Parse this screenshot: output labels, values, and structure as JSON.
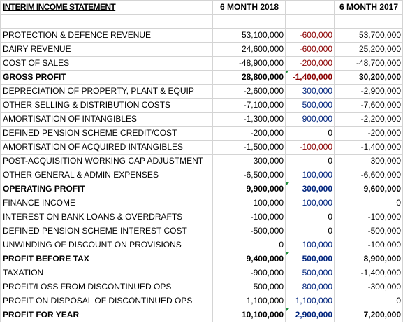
{
  "header": {
    "title": "INTERIM INCOME STATEMENT",
    "col_2018": "6 MONTH 2018",
    "col_2017": "6 MONTH 2017"
  },
  "rows": [
    {
      "label": "PROTECTION & DEFENCE REVENUE",
      "v2018": "53,100,000",
      "diff": "-600,000",
      "v2017": "53,700,000",
      "bold": false,
      "diff_kind": "neg"
    },
    {
      "label": "DAIRY REVENUE",
      "v2018": "24,600,000",
      "diff": "-600,000",
      "v2017": "25,200,000",
      "bold": false,
      "diff_kind": "neg"
    },
    {
      "label": "COST OF SALES",
      "v2018": "-48,900,000",
      "diff": "-200,000",
      "v2017": "-48,700,000",
      "bold": false,
      "diff_kind": "neg"
    },
    {
      "label": "GROSS PROFIT",
      "v2018": "28,800,000",
      "diff": "-1,400,000",
      "v2017": "30,200,000",
      "bold": true,
      "diff_kind": "neg",
      "flag": true
    },
    {
      "label": "DEPRECIATION OF PROPERTY, PLANT & EQUIP",
      "v2018": "-2,600,000",
      "diff": "300,000",
      "v2017": "-2,900,000",
      "bold": false,
      "diff_kind": "pos"
    },
    {
      "label": "OTHER SELLING & DISTRIBUTION COSTS",
      "v2018": "-7,100,000",
      "diff": "500,000",
      "v2017": "-7,600,000",
      "bold": false,
      "diff_kind": "pos"
    },
    {
      "label": "AMORTISATION OF INTANGIBLES",
      "v2018": "-1,300,000",
      "diff": "900,000",
      "v2017": "-2,200,000",
      "bold": false,
      "diff_kind": "pos"
    },
    {
      "label": "DEFINED PENSION SCHEME CREDIT/COST",
      "v2018": "-200,000",
      "diff": "0",
      "v2017": "-200,000",
      "bold": false,
      "diff_kind": "zero"
    },
    {
      "label": "AMORTISATION OF ACQUIRED INTANGIBLES",
      "v2018": "-1,500,000",
      "diff": "-100,000",
      "v2017": "-1,400,000",
      "bold": false,
      "diff_kind": "neg"
    },
    {
      "label": "POST-ACQUISITION WORKING CAP ADJUSTMENT",
      "v2018": "300,000",
      "diff": "0",
      "v2017": "300,000",
      "bold": false,
      "diff_kind": "zero"
    },
    {
      "label": "OTHER GENERAL & ADMIN EXPENSES",
      "v2018": "-6,500,000",
      "diff": "100,000",
      "v2017": "-6,600,000",
      "bold": false,
      "diff_kind": "pos"
    },
    {
      "label": "OPERATING PROFIT",
      "v2018": "9,900,000",
      "diff": "300,000",
      "v2017": "9,600,000",
      "bold": true,
      "diff_kind": "pos",
      "flag": true
    },
    {
      "label": "FINANCE INCOME",
      "v2018": "100,000",
      "diff": "100,000",
      "v2017": "0",
      "bold": false,
      "diff_kind": "pos"
    },
    {
      "label": "INTEREST ON BANK LOANS & OVERDRAFTS",
      "v2018": "-100,000",
      "diff": "0",
      "v2017": "-100,000",
      "bold": false,
      "diff_kind": "zero"
    },
    {
      "label": "DEFINED PENSION SCHEME INTEREST COST",
      "v2018": "-500,000",
      "diff": "0",
      "v2017": "-500,000",
      "bold": false,
      "diff_kind": "zero"
    },
    {
      "label": "UNWINDING OF DISCOUNT ON PROVISIONS",
      "v2018": "0",
      "diff": "100,000",
      "v2017": "-100,000",
      "bold": false,
      "diff_kind": "pos"
    },
    {
      "label": "PROFIT BEFORE TAX",
      "v2018": "9,400,000",
      "diff": "500,000",
      "v2017": "8,900,000",
      "bold": true,
      "diff_kind": "pos",
      "flag": true
    },
    {
      "label": "TAXATION",
      "v2018": "-900,000",
      "diff": "500,000",
      "v2017": "-1,400,000",
      "bold": false,
      "diff_kind": "pos"
    },
    {
      "label": "PROFIT/LOSS FROM DISCONTINUED OPS",
      "v2018": "500,000",
      "diff": "800,000",
      "v2017": "-300,000",
      "bold": false,
      "diff_kind": "pos"
    },
    {
      "label": "PROFIT ON DISPOSAL OF DISCONTINUED OPS",
      "v2018": "1,100,000",
      "diff": "1,100,000",
      "v2017": "0",
      "bold": false,
      "diff_kind": "pos"
    },
    {
      "label": "PROFIT FOR YEAR",
      "v2018": "10,100,000",
      "diff": "2,900,000",
      "v2017": "7,200,000",
      "bold": true,
      "diff_kind": "pos",
      "flag": true
    }
  ]
}
